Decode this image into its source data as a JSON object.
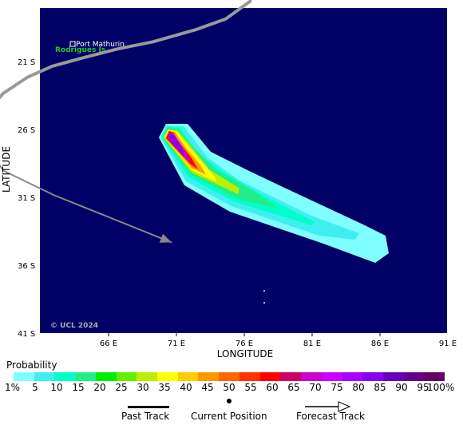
{
  "map": {
    "background_color": "#000066",
    "lon_ticks": [
      "66 E",
      "71 E",
      "76 E",
      "81 E",
      "86 E",
      "91 E"
    ],
    "lat_ticks": [
      "21 S",
      "26 S",
      "31 S",
      "36 S",
      "41 S"
    ],
    "x_axis_title": "LONGITUDE",
    "y_axis_title": "LATITUDE",
    "lon_range": [
      60.5,
      90.5
    ],
    "lat_range": [
      -17.0,
      -41.0
    ],
    "place_name": "Port Mathurin",
    "island_name": "Rodrigues Is.",
    "copyright": "© UCL 2024"
  },
  "track": {
    "past_color": "#999999",
    "forecast_color": "#888888",
    "past_points": [
      [
        76.0,
        -16.5
      ],
      [
        74.2,
        -17.8
      ],
      [
        72.0,
        -18.6
      ],
      [
        68.8,
        -19.5
      ],
      [
        66.3,
        -20.0
      ],
      [
        63.6,
        -20.7
      ],
      [
        61.4,
        -21.3
      ],
      [
        59.6,
        -22.1
      ],
      [
        57.8,
        -23.3
      ],
      [
        56.2,
        -25.1
      ],
      [
        56.1,
        -26.5
      ]
    ],
    "current_position": [
      56.1,
      -26.5
    ],
    "forecast_points": [
      [
        56.1,
        -26.5
      ],
      [
        57.8,
        -29.0
      ],
      [
        61.5,
        -30.8
      ],
      [
        70.2,
        -34.3
      ]
    ]
  },
  "probability_legend": {
    "title": "Probability",
    "colors": [
      "#7fffff",
      "#3fefef",
      "#00ffcc",
      "#22ee88",
      "#00ee00",
      "#66ee00",
      "#bbee00",
      "#ffff00",
      "#ffcc00",
      "#ff9900",
      "#ff6600",
      "#ff3300",
      "#ff0000",
      "#cc0066",
      "#cc00cc",
      "#cc00ff",
      "#aa00ff",
      "#8800ee",
      "#6600bb",
      "#660088",
      "#660066"
    ],
    "labels": [
      "1%",
      "5",
      "10",
      "15",
      "20",
      "25",
      "30",
      "35",
      "40",
      "45",
      "50",
      "55",
      "60",
      "65",
      "70",
      "75",
      "80",
      "85",
      "90",
      "95",
      "100%"
    ]
  },
  "track_legend": {
    "past": "Past Track",
    "current": "Current Position",
    "forecast": "Forecast Track"
  }
}
